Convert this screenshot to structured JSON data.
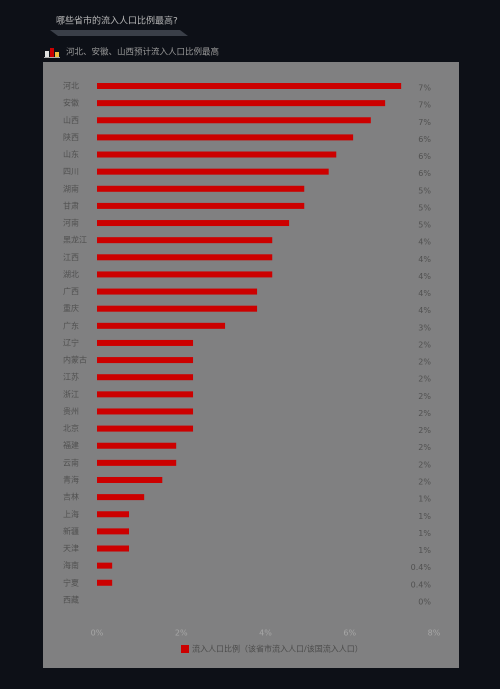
{
  "chart_data": {
    "type": "hbar",
    "title": "哪些省市的流入人口比例最高?",
    "subtitle": "河北、安徽、山西预计流入人口比例最高",
    "categories": [
      "河北",
      "安徽",
      "山西",
      "陕西",
      "山东",
      "四川",
      "湖南",
      "甘肃",
      "河南",
      "黑龙江",
      "江西",
      "湖北",
      "广西",
      "重庆",
      "广东",
      "辽宁",
      "内蒙古",
      "江苏",
      "浙江",
      "贵州",
      "北京",
      "福建",
      "云南",
      "青海",
      "吉林",
      "上海",
      "新疆",
      "天津",
      "海南",
      "宁夏",
      "西藏"
    ],
    "series": [
      {
        "name": "流入人口比例（该省市流入人口/该国流入人口）",
        "color": "#cc0000",
        "values": [
          7.22,
          6.84,
          6.5,
          6.08,
          5.68,
          5.5,
          4.92,
          4.92,
          4.56,
          4.16,
          4.16,
          4.16,
          3.8,
          3.8,
          3.04,
          2.28,
          2.28,
          2.28,
          2.28,
          2.28,
          2.28,
          1.88,
          1.88,
          1.55,
          1.12,
          0.76,
          0.76,
          0.76,
          0.36,
          0.36,
          0
        ],
        "value_labels": [
          "7%",
          "7%",
          "7%",
          "6%",
          "6%",
          "6%",
          "5%",
          "5%",
          "5%",
          "4%",
          "4%",
          "4%",
          "4%",
          "4%",
          "3%",
          "2%",
          "2%",
          "2%",
          "2%",
          "2%",
          "2%",
          "2%",
          "2%",
          "2%",
          "1%",
          "1%",
          "1%",
          "1%",
          "0.4%",
          "0.4%",
          "0%"
        ]
      }
    ],
    "xlim": [
      0,
      8
    ],
    "xticks": [
      {
        "value": 0,
        "label": "0%"
      },
      {
        "value": 2,
        "label": "2%"
      },
      {
        "value": 4,
        "label": "4%"
      },
      {
        "value": 6,
        "label": "6%"
      },
      {
        "value": 8,
        "label": "8%"
      }
    ]
  }
}
